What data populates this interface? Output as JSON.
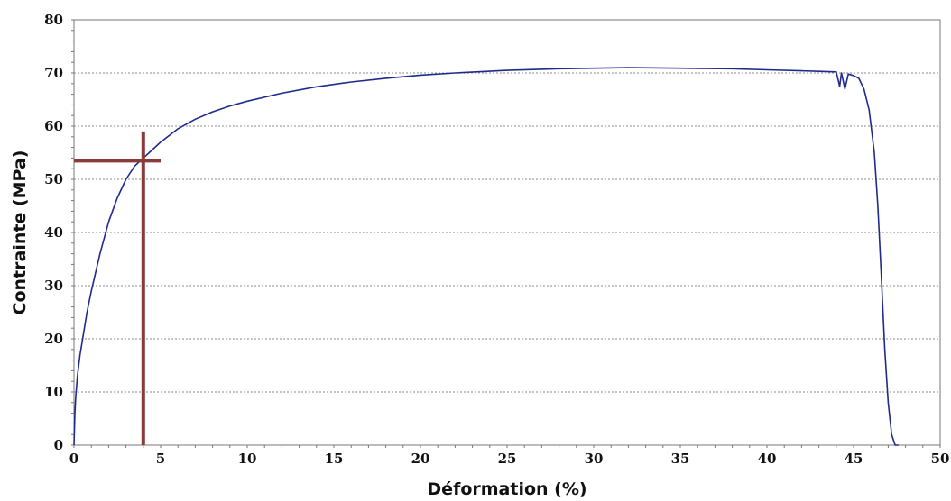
{
  "chart_data": {
    "type": "line",
    "title": "",
    "xlabel": "Déformation (%)",
    "ylabel": "Contrainte (MPa)",
    "xlim": [
      0,
      50
    ],
    "ylim": [
      0,
      80
    ],
    "x_ticks": [
      0,
      5,
      10,
      15,
      20,
      25,
      30,
      35,
      40,
      45,
      50
    ],
    "y_ticks": [
      0,
      10,
      20,
      30,
      40,
      50,
      60,
      70,
      80
    ],
    "grid": "horizontal dotted",
    "legend": "none",
    "series": [
      {
        "color": "#1f2a8c",
        "x": [
          0,
          0.05,
          0.1,
          0.2,
          0.35,
          0.5,
          0.75,
          1,
          1.5,
          2,
          2.5,
          3,
          3.5,
          4,
          4.5,
          5,
          6,
          7,
          8,
          9,
          10,
          12,
          14,
          16,
          18,
          20,
          22,
          25,
          28,
          30,
          32,
          35,
          38,
          40,
          42,
          43,
          44,
          44.2,
          44.3,
          44.5,
          44.7,
          45,
          45.3,
          45.6,
          45.9,
          46.2,
          46.4,
          46.6,
          46.8,
          47,
          47.2,
          47.4,
          47.6
        ],
        "y": [
          0,
          6,
          9,
          13,
          17,
          20,
          25,
          29,
          36,
          42,
          46.5,
          50,
          52.5,
          54,
          55.5,
          57,
          59.5,
          61.3,
          62.7,
          63.8,
          64.7,
          66.2,
          67.4,
          68.3,
          69,
          69.6,
          70,
          70.5,
          70.8,
          70.9,
          71,
          70.9,
          70.8,
          70.6,
          70.4,
          70.3,
          70.2,
          67.5,
          70,
          67,
          69.8,
          69.5,
          69,
          67,
          63,
          55,
          45,
          32,
          18,
          8,
          2,
          0,
          0
        ]
      },
      {
        "color": "#8b3a3a",
        "x": [
          4,
          4
        ],
        "y": [
          0,
          59
        ]
      },
      {
        "color": "#8b3a3a",
        "x": [
          0,
          5
        ],
        "y": [
          53.5,
          53.5
        ]
      }
    ]
  }
}
